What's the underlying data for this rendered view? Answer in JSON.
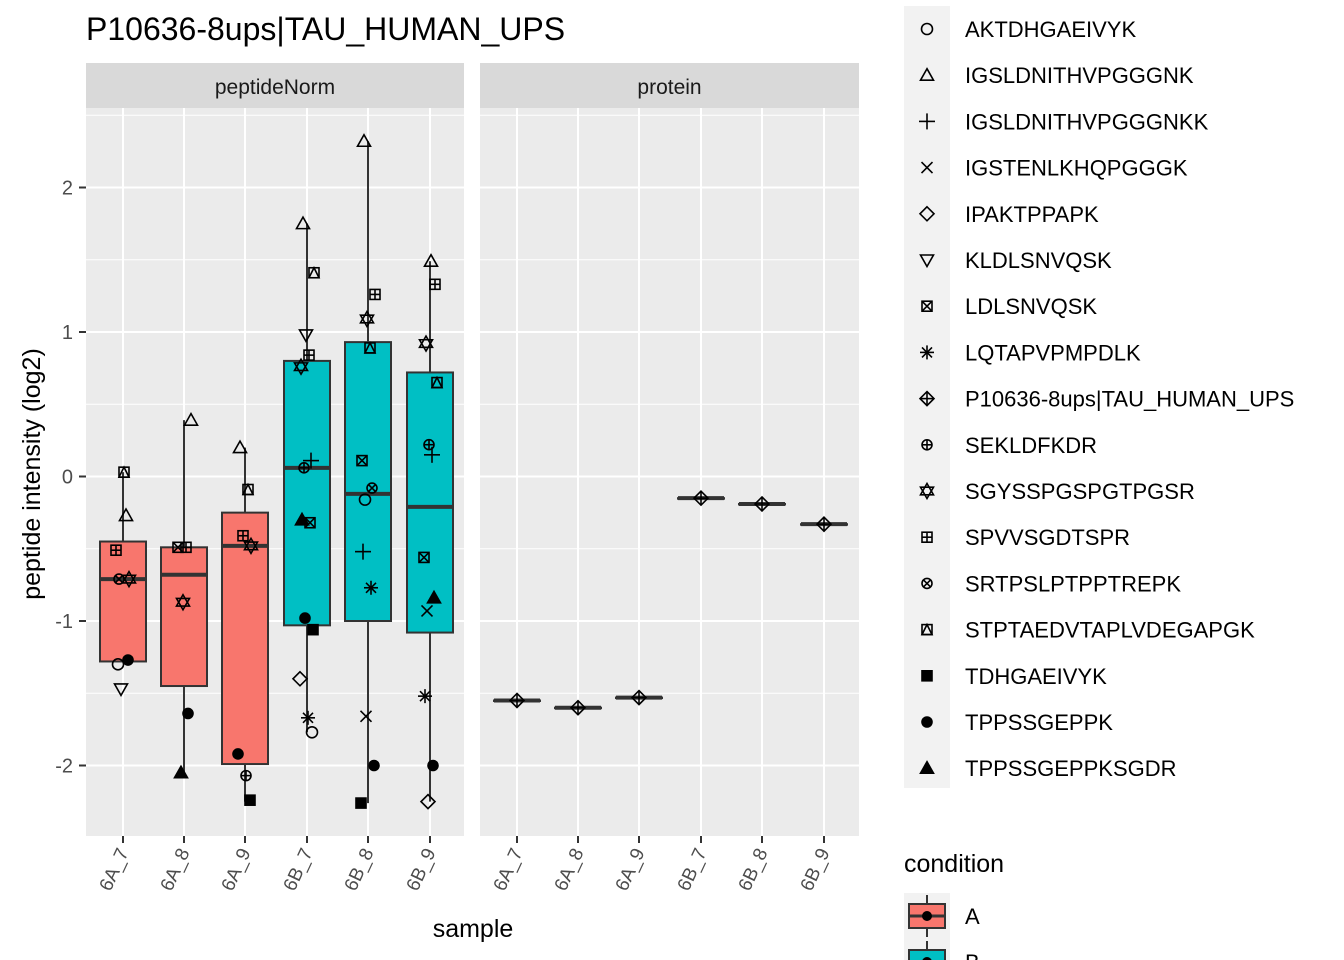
{
  "chart_data": {
    "type": "boxplot",
    "title": "P10636-8ups|TAU_HUMAN_UPS",
    "xlabel": "sample",
    "ylabel": "peptide intensity (log2)",
    "ylim": [
      -2.5,
      2.5
    ],
    "yticks": [
      -2,
      -1,
      0,
      1,
      2
    ],
    "samples": [
      "6A_7",
      "6A_8",
      "6A_9",
      "6B_7",
      "6B_8",
      "6B_9"
    ],
    "sample_condition": [
      "A",
      "A",
      "A",
      "B",
      "B",
      "B"
    ],
    "facets": [
      {
        "label": "peptideNorm",
        "boxes": [
          {
            "sample": "6A_7",
            "q1": -1.28,
            "median": -0.71,
            "q3": -0.45,
            "whisker_low": -1.28,
            "whisker_high": 0.03
          },
          {
            "sample": "6A_8",
            "q1": -1.45,
            "median": -0.68,
            "q3": -0.49,
            "whisker_low": -2.05,
            "whisker_high": 0.39
          },
          {
            "sample": "6A_9",
            "q1": -1.99,
            "median": -0.48,
            "q3": -0.25,
            "whisker_low": -2.25,
            "whisker_high": 0.2
          },
          {
            "sample": "6B_7",
            "q1": -1.03,
            "median": 0.06,
            "q3": 0.8,
            "whisker_low": -1.77,
            "whisker_high": 1.75
          },
          {
            "sample": "6B_8",
            "q1": -1.0,
            "median": -0.12,
            "q3": 0.93,
            "whisker_low": -2.26,
            "whisker_high": 2.32
          },
          {
            "sample": "6B_9",
            "q1": -1.08,
            "median": -0.21,
            "q3": 0.72,
            "whisker_low": -2.25,
            "whisker_high": 1.49
          }
        ],
        "points": [
          {
            "sample": "6A_7",
            "peptide": "AKTDHGAEIVYK",
            "y": -1.3
          },
          {
            "sample": "6A_7",
            "peptide": "IGSLDNITHVPGGGNK",
            "y": -0.27
          },
          {
            "sample": "6A_7",
            "peptide": "KLDLSNVQSK",
            "y": -1.47
          },
          {
            "sample": "6A_7",
            "peptide": "SGYSSPGSPGTPGSR",
            "y": -0.71
          },
          {
            "sample": "6A_7",
            "peptide": "SPVVSGDTSPR",
            "y": -0.51
          },
          {
            "sample": "6A_7",
            "peptide": "STPTAEDVTAPLVDEGAPGK",
            "y": 0.03
          },
          {
            "sample": "6A_7",
            "peptide": "TPPSSGEPPK",
            "y": -1.27
          },
          {
            "sample": "6A_7",
            "peptide": "SRTPSLPTPPTREPK",
            "y": -0.71
          },
          {
            "sample": "6A_8",
            "peptide": "IGSLDNITHVPGGGNK",
            "y": 0.39
          },
          {
            "sample": "6A_8",
            "peptide": "SGYSSPGSPGTPGSR",
            "y": -0.87
          },
          {
            "sample": "6A_8",
            "peptide": "SPVVSGDTSPR",
            "y": -0.49
          },
          {
            "sample": "6A_8",
            "peptide": "LDLSNVQSK",
            "y": -0.49
          },
          {
            "sample": "6A_8",
            "peptide": "TPPSSGEPPK",
            "y": -1.64
          },
          {
            "sample": "6A_8",
            "peptide": "TPPSSGEPPKSGDR",
            "y": -2.05
          },
          {
            "sample": "6A_9",
            "peptide": "IGSLDNITHVPGGGNK",
            "y": 0.2
          },
          {
            "sample": "6A_9",
            "peptide": "STPTAEDVTAPLVDEGAPGK",
            "y": -0.09
          },
          {
            "sample": "6A_9",
            "peptide": "SPVVSGDTSPR",
            "y": -0.41
          },
          {
            "sample": "6A_9",
            "peptide": "SGYSSPGSPGTPGSR",
            "y": -0.48
          },
          {
            "sample": "6A_9",
            "peptide": "TPPSSGEPPK",
            "y": -1.92
          },
          {
            "sample": "6A_9",
            "peptide": "SEKLDFKDR",
            "y": -2.07
          },
          {
            "sample": "6A_9",
            "peptide": "TDHGAEIVYK",
            "y": -2.24
          },
          {
            "sample": "6B_7",
            "peptide": "IGSLDNITHVPGGGNK",
            "y": 1.75
          },
          {
            "sample": "6B_7",
            "peptide": "STPTAEDVTAPLVDEGAPGK",
            "y": 1.41
          },
          {
            "sample": "6B_7",
            "peptide": "KLDLSNVQSK",
            "y": 0.98
          },
          {
            "sample": "6B_7",
            "peptide": "SPVVSGDTSPR",
            "y": 0.84
          },
          {
            "sample": "6B_7",
            "peptide": "SGYSSPGSPGTPGSR",
            "y": 0.76
          },
          {
            "sample": "6B_7",
            "peptide": "IGSLDNITHVPGGGNKK",
            "y": 0.11
          },
          {
            "sample": "6B_7",
            "peptide": "SEKLDFKDR",
            "y": 0.06
          },
          {
            "sample": "6B_7",
            "peptide": "TPPSSGEPPKSGDR",
            "y": -0.3
          },
          {
            "sample": "6B_7",
            "peptide": "LDLSNVQSK",
            "y": -0.32
          },
          {
            "sample": "6B_7",
            "peptide": "TPPSSGEPPK",
            "y": -0.98
          },
          {
            "sample": "6B_7",
            "peptide": "TDHGAEIVYK",
            "y": -1.06
          },
          {
            "sample": "6B_7",
            "peptide": "IPAKTPPAPK",
            "y": -1.4
          },
          {
            "sample": "6B_7",
            "peptide": "LQTAPVPMPDLK",
            "y": -1.67
          },
          {
            "sample": "6B_7",
            "peptide": "AKTDHGAEIVYK",
            "y": -1.77
          },
          {
            "sample": "6B_8",
            "peptide": "IGSLDNITHVPGGGNK",
            "y": 2.32
          },
          {
            "sample": "6B_8",
            "peptide": "SPVVSGDTSPR",
            "y": 1.26
          },
          {
            "sample": "6B_8",
            "peptide": "SGYSSPGSPGTPGSR",
            "y": 1.09
          },
          {
            "sample": "6B_8",
            "peptide": "STPTAEDVTAPLVDEGAPGK",
            "y": 0.89
          },
          {
            "sample": "6B_8",
            "peptide": "LDLSNVQSK",
            "y": 0.11
          },
          {
            "sample": "6B_8",
            "peptide": "SRTPSLPTPPTREPK",
            "y": -0.08
          },
          {
            "sample": "6B_8",
            "peptide": "AKTDHGAEIVYK",
            "y": -0.16
          },
          {
            "sample": "6B_8",
            "peptide": "IGSLDNITHVPGGGNKK",
            "y": -0.52
          },
          {
            "sample": "6B_8",
            "peptide": "LQTAPVPMPDLK",
            "y": -0.77
          },
          {
            "sample": "6B_8",
            "peptide": "IGSTENLKHQPGGGK",
            "y": -1.66
          },
          {
            "sample": "6B_8",
            "peptide": "TPPSSGEPPK",
            "y": -2.0
          },
          {
            "sample": "6B_8",
            "peptide": "TDHGAEIVYK",
            "y": -2.26
          },
          {
            "sample": "6B_9",
            "peptide": "IGSLDNITHVPGGGNK",
            "y": 1.49
          },
          {
            "sample": "6B_9",
            "peptide": "SPVVSGDTSPR",
            "y": 1.33
          },
          {
            "sample": "6B_9",
            "peptide": "SGYSSPGSPGTPGSR",
            "y": 0.92
          },
          {
            "sample": "6B_9",
            "peptide": "STPTAEDVTAPLVDEGAPGK",
            "y": 0.65
          },
          {
            "sample": "6B_9",
            "peptide": "SEKLDFKDR",
            "y": 0.22
          },
          {
            "sample": "6B_9",
            "peptide": "IGSLDNITHVPGGGNKK",
            "y": 0.15
          },
          {
            "sample": "6B_9",
            "peptide": "LDLSNVQSK",
            "y": -0.56
          },
          {
            "sample": "6B_9",
            "peptide": "TPPSSGEPPKSGDR",
            "y": -0.84
          },
          {
            "sample": "6B_9",
            "peptide": "IGSTENLKHQPGGGK",
            "y": -0.93
          },
          {
            "sample": "6B_9",
            "peptide": "LQTAPVPMPDLK",
            "y": -1.52
          },
          {
            "sample": "6B_9",
            "peptide": "TPPSSGEPPK",
            "y": -2.0
          },
          {
            "sample": "6B_9",
            "peptide": "IPAKTPPAPK",
            "y": -2.25
          }
        ]
      },
      {
        "label": "protein",
        "boxes": [
          {
            "sample": "6A_7",
            "q1": -1.55,
            "median": -1.55,
            "q3": -1.55,
            "whisker_low": -1.55,
            "whisker_high": -1.55
          },
          {
            "sample": "6A_8",
            "q1": -1.6,
            "median": -1.6,
            "q3": -1.6,
            "whisker_low": -1.6,
            "whisker_high": -1.6
          },
          {
            "sample": "6A_9",
            "q1": -1.53,
            "median": -1.53,
            "q3": -1.53,
            "whisker_low": -1.53,
            "whisker_high": -1.53
          },
          {
            "sample": "6B_7",
            "q1": -0.15,
            "median": -0.15,
            "q3": -0.15,
            "whisker_low": -0.15,
            "whisker_high": -0.15
          },
          {
            "sample": "6B_8",
            "q1": -0.19,
            "median": -0.19,
            "q3": -0.19,
            "whisker_low": -0.19,
            "whisker_high": -0.19
          },
          {
            "sample": "6B_9",
            "q1": -0.33,
            "median": -0.33,
            "q3": -0.33,
            "whisker_low": -0.33,
            "whisker_high": -0.33
          }
        ],
        "points": [
          {
            "sample": "6A_7",
            "peptide": "P10636-8ups|TAU_HUMAN_UPS",
            "y": -1.55
          },
          {
            "sample": "6A_8",
            "peptide": "P10636-8ups|TAU_HUMAN_UPS",
            "y": -1.6
          },
          {
            "sample": "6A_9",
            "peptide": "P10636-8ups|TAU_HUMAN_UPS",
            "y": -1.53
          },
          {
            "sample": "6B_7",
            "peptide": "P10636-8ups|TAU_HUMAN_UPS",
            "y": -0.15
          },
          {
            "sample": "6B_8",
            "peptide": "P10636-8ups|TAU_HUMAN_UPS",
            "y": -0.19
          },
          {
            "sample": "6B_9",
            "peptide": "P10636-8ups|TAU_HUMAN_UPS",
            "y": -0.33
          }
        ]
      }
    ],
    "shape_legend": [
      {
        "label": "AKTDHGAEIVYK",
        "shape": "circle-open"
      },
      {
        "label": "IGSLDNITHVPGGGNK",
        "shape": "triangle-open"
      },
      {
        "label": "IGSLDNITHVPGGGNKK",
        "shape": "plus"
      },
      {
        "label": "IGSTENLKHQPGGGK",
        "shape": "cross"
      },
      {
        "label": "IPAKTPPAPK",
        "shape": "diamond-open"
      },
      {
        "label": "KLDLSNVQSK",
        "shape": "triangle-down-open"
      },
      {
        "label": "LDLSNVQSK",
        "shape": "square-cross"
      },
      {
        "label": "LQTAPVPMPDLK",
        "shape": "asterisk"
      },
      {
        "label": "P10636-8ups|TAU_HUMAN_UPS",
        "shape": "diamond-plus"
      },
      {
        "label": "SEKLDFKDR",
        "shape": "circle-plus"
      },
      {
        "label": "SGYSSPGSPGTPGSR",
        "shape": "star-of-david"
      },
      {
        "label": "SPVVSGDTSPR",
        "shape": "square-plus"
      },
      {
        "label": "SRTPSLPTPPTREPK",
        "shape": "circle-cross"
      },
      {
        "label": "STPTAEDVTAPLVDEGAPGK",
        "shape": "square-triangle"
      },
      {
        "label": "TDHGAEIVYK",
        "shape": "square-filled"
      },
      {
        "label": "TPPSSGEPPK",
        "shape": "circle-filled"
      },
      {
        "label": "TPPSSGEPPKSGDR",
        "shape": "triangle-filled"
      }
    ],
    "fill_legend": {
      "title": "condition",
      "items": [
        {
          "label": "A",
          "color": "#F8766D"
        },
        {
          "label": "B",
          "color": "#00BFC4"
        }
      ]
    },
    "grid": true,
    "panel_bg": "#EBEBEB",
    "strip_bg": "#D9D9D9"
  }
}
